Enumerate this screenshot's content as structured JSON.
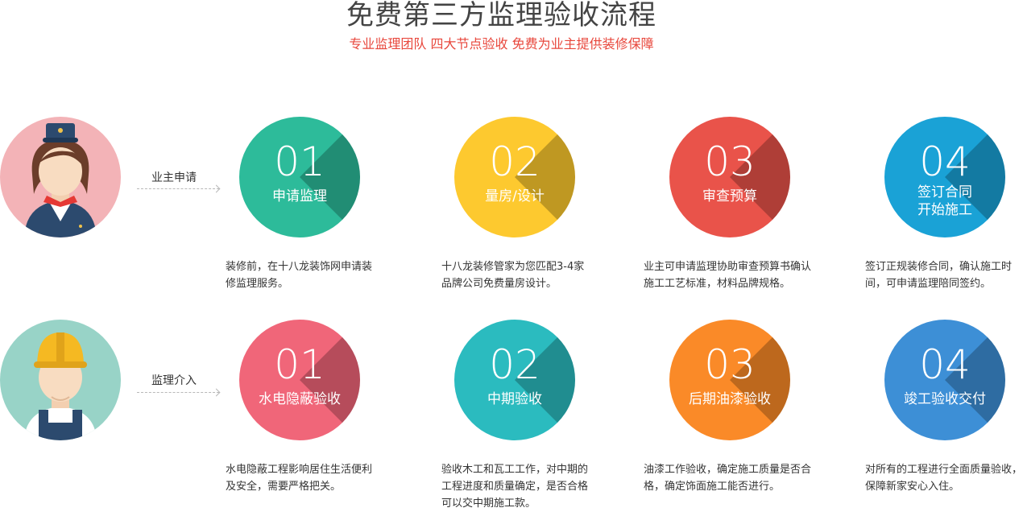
{
  "header": {
    "title": "免费第三方监理验收流程",
    "subtitle": "专业监理团队  四大节点验收  免费为业主提供装修保障"
  },
  "rows": [
    {
      "label": "业主申请",
      "avatar_bg": "#f3b3b7",
      "steps": [
        {
          "num": "01",
          "name": "申请监理",
          "color": "#2dbb9a",
          "desc": "装修前，在十八龙装饰网申请装修监理服务。"
        },
        {
          "num": "02",
          "name": "量房/设计",
          "color": "#fdc92f",
          "desc": "十八龙装修管家为您匹配3-4家品牌公司免费量房设计。"
        },
        {
          "num": "03",
          "name": "审查预算",
          "color": "#e9534a",
          "desc": "业主可申请监理协助审查预算书确认施工工艺标准，材料品牌规格。"
        },
        {
          "num": "04",
          "name": "签订合同",
          "name2": "开始施工",
          "color": "#1aa2d6",
          "desc": "签订正规装修合同，确认施工时间，可申请监理陪同签约。"
        }
      ]
    },
    {
      "label": "监理介入",
      "avatar_bg": "#98d3c7",
      "steps": [
        {
          "num": "01",
          "name": "水电隐蔽验收",
          "color": "#f06679",
          "desc": "水电隐蔽工程影响居住生活便利及安全，需要严格把关。"
        },
        {
          "num": "02",
          "name": "中期验收",
          "color": "#2bbbbf",
          "desc": "验收木工和瓦工工作，对中期的工程进度和质量确定，是否合格可以交中期施工款。"
        },
        {
          "num": "03",
          "name": "后期油漆验收",
          "color": "#fa8a28",
          "desc": "油漆工作验收，确定施工质量是否合格，确定饰面施工能否进行。"
        },
        {
          "num": "04",
          "name": "竣工验收交付",
          "color": "#3d8fd6",
          "desc": "对所有的工程进行全面质量验收，保障新家安心入住。"
        }
      ]
    }
  ]
}
